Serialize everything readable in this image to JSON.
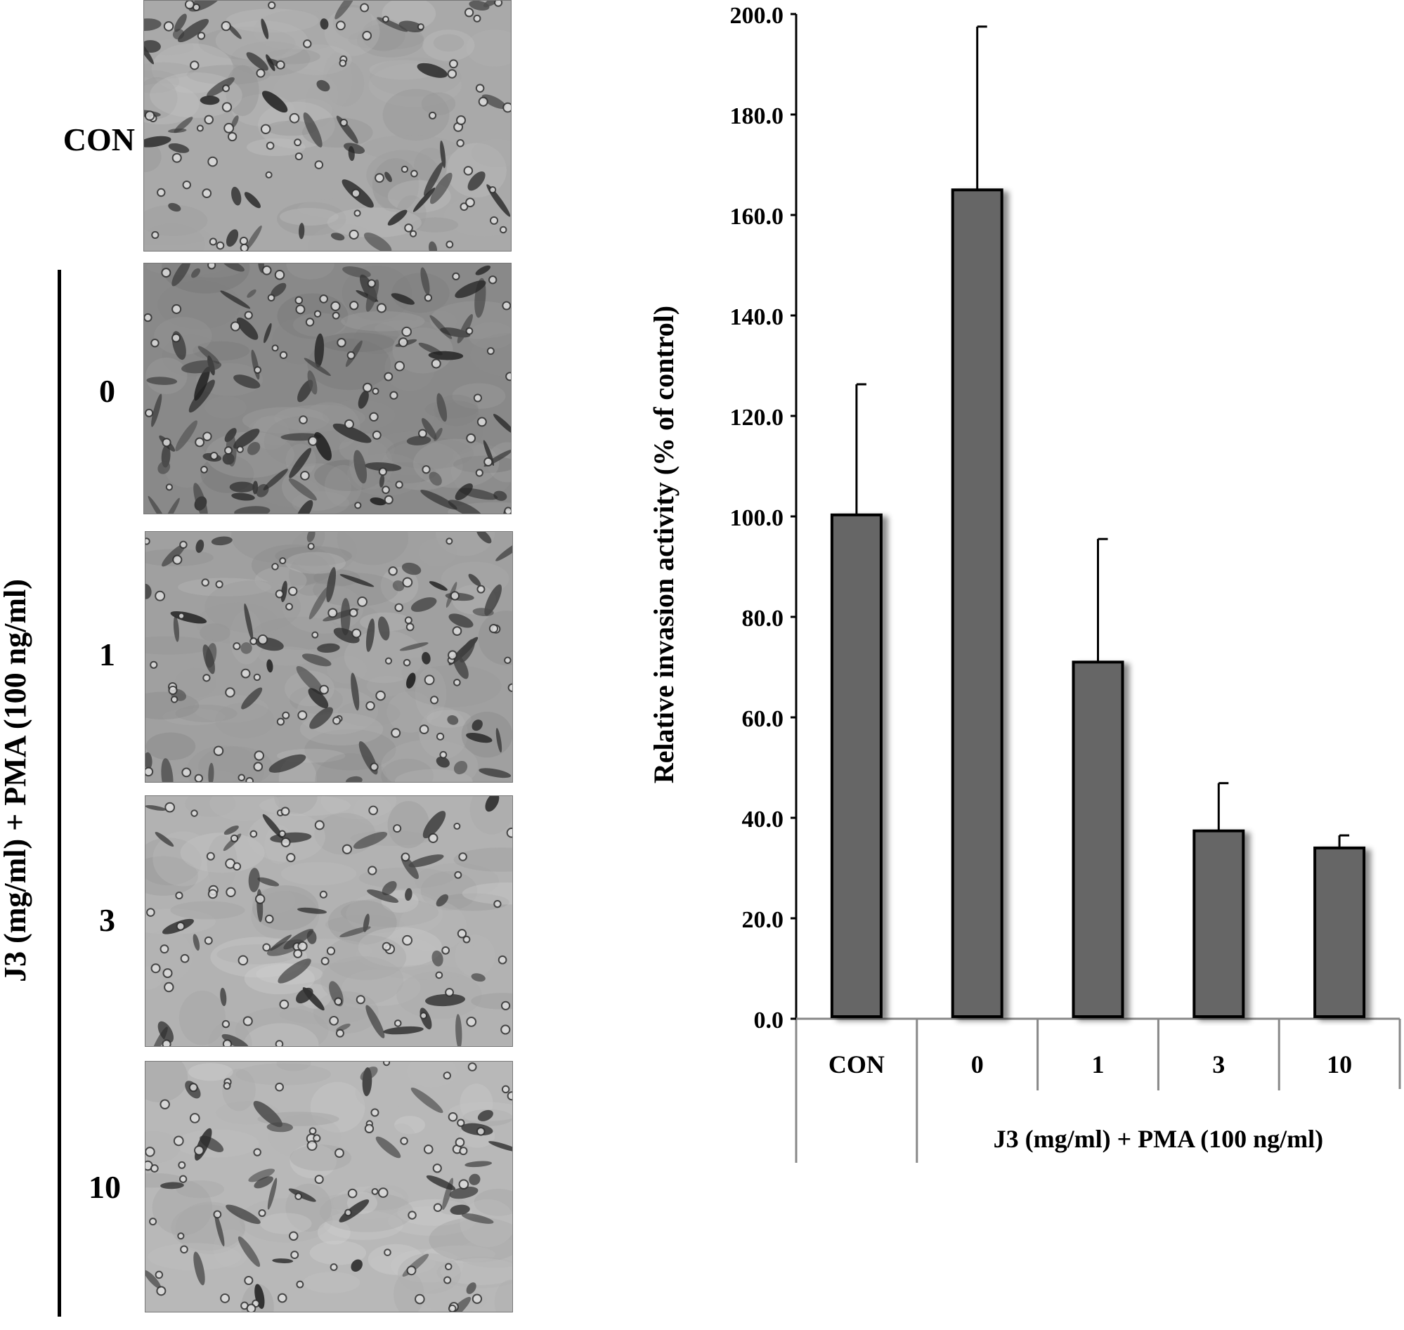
{
  "figure": {
    "side_label": "J3  (mg/ml) + PMA (100 ng/ml)",
    "panel_labels": [
      "CON",
      "0",
      "1",
      "3",
      "10"
    ],
    "panel_density": [
      0.35,
      0.7,
      0.45,
      0.25,
      0.18
    ]
  },
  "chart_data": {
    "type": "bar",
    "categories": [
      "CON",
      "0",
      "1",
      "3",
      "10"
    ],
    "values": [
      100.3,
      165.0,
      71.0,
      37.4,
      34.0
    ],
    "errors": [
      26.0,
      32.5,
      24.5,
      9.5,
      2.5
    ],
    "ylabel": "Relative invasion activity (% of control)",
    "group_label": "J3 (mg/ml) + PMA (100 ng/ml)",
    "ylim": [
      0,
      200
    ],
    "yticks": [
      "0.0",
      "20.0",
      "40.0",
      "60.0",
      "80.0",
      "100.0",
      "120.0",
      "140.0",
      "160.0",
      "180.0",
      "200.0"
    ],
    "bar_color": "#666666",
    "grid": false
  }
}
